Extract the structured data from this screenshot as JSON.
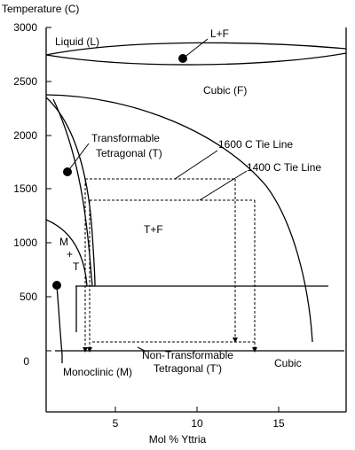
{
  "y_axis": {
    "title": "Temperature (C)",
    "ticks": [
      "3000",
      "2500",
      "2000",
      "1500",
      "1000",
      "500",
      "0"
    ]
  },
  "x_axis": {
    "title": "Mol % Yttria",
    "ticks": [
      "5",
      "10",
      "15"
    ]
  },
  "regions": {
    "liquid": "Liquid (L)",
    "liquid_fluorite": "L+F",
    "cubic_f": "Cubic (F)",
    "transformable_1": "Transformable",
    "transformable_2": "Tetragonal (T)",
    "t_plus_f": "T+F",
    "m_1": "M",
    "m_2": "+",
    "m_3": "T",
    "monoclinic": "Monoclinic (M)",
    "nontransformable_1": "Non-Transformable",
    "nontransformable_2": "Tetragonal (T')",
    "cubic": "Cubic"
  },
  "tie_lines": {
    "t1600": "1600 C Tie Line",
    "t1400": "1400 C Tie Line"
  },
  "colors": {
    "line": "#000000",
    "background": "#ffffff"
  }
}
